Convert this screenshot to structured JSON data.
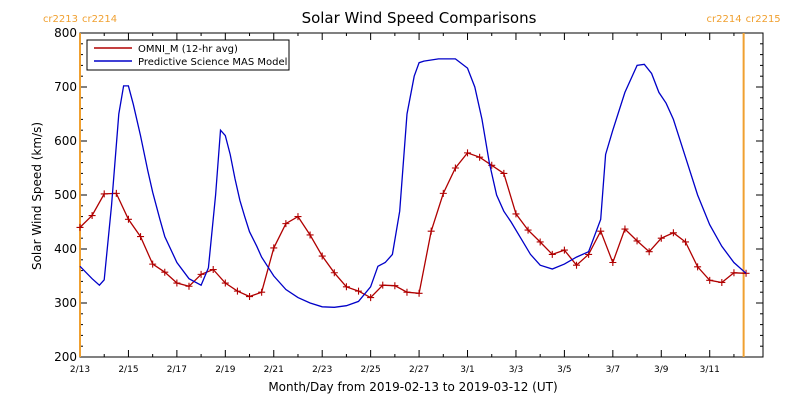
{
  "chart_data": {
    "type": "line",
    "title": "Solar Wind Speed Comparisons",
    "xlabel": "Month/Day from 2019-02-13 to 2019-03-12 (UT)",
    "ylabel": "Solar Wind Speed (km/s)",
    "xlim": [
      0,
      28.2
    ],
    "ylim": [
      200,
      800
    ],
    "x_ticks": [
      {
        "x": 0,
        "label": "2/13"
      },
      {
        "x": 2,
        "label": "2/15"
      },
      {
        "x": 4,
        "label": "2/17"
      },
      {
        "x": 6,
        "label": "2/19"
      },
      {
        "x": 8,
        "label": "2/21"
      },
      {
        "x": 10,
        "label": "2/23"
      },
      {
        "x": 12,
        "label": "2/25"
      },
      {
        "x": 14,
        "label": "2/27"
      },
      {
        "x": 16,
        "label": "3/1"
      },
      {
        "x": 18,
        "label": "3/3"
      },
      {
        "x": 20,
        "label": "3/5"
      },
      {
        "x": 22,
        "label": "3/7"
      },
      {
        "x": 24,
        "label": "3/9"
      },
      {
        "x": 26,
        "label": "3/11"
      }
    ],
    "y_ticks": [
      200,
      300,
      400,
      500,
      600,
      700,
      800
    ],
    "carrington_markers": [
      {
        "x": 0.0,
        "label_left": "cr2213",
        "label_right": "cr2214"
      },
      {
        "x": 27.4,
        "label_left": "cr2214",
        "label_right": "cr2215"
      }
    ],
    "marker_color": "#f0a030",
    "legend_position": "top-left",
    "series": [
      {
        "name": "OMNI_M (12-hr avg)",
        "color": "#b00000",
        "markers": "plus",
        "x": [
          0.0,
          0.5,
          1.0,
          1.5,
          2.0,
          2.5,
          3.0,
          3.5,
          4.0,
          4.5,
          5.0,
          5.5,
          6.0,
          6.5,
          7.0,
          7.5,
          8.0,
          8.5,
          9.0,
          9.5,
          10.0,
          10.5,
          11.0,
          11.5,
          12.0,
          12.5,
          13.0,
          13.5,
          14.0,
          14.5,
          15.0,
          15.5,
          16.0,
          16.5,
          17.0,
          17.5,
          18.0,
          18.5,
          19.0,
          19.5,
          20.0,
          20.5,
          21.0,
          21.5,
          22.0,
          22.5,
          23.0,
          23.5,
          24.0,
          24.5,
          25.0,
          25.5,
          26.0,
          26.5,
          27.0,
          27.5
        ],
        "y": [
          440,
          462,
          502,
          503,
          455,
          423,
          372,
          357,
          337,
          331,
          353,
          362,
          337,
          322,
          312,
          320,
          402,
          447,
          460,
          426,
          387,
          356,
          330,
          322,
          310,
          333,
          332,
          320,
          318,
          433,
          503,
          550,
          578,
          570,
          555,
          540,
          465,
          435,
          413,
          390,
          398,
          370,
          390,
          433,
          375,
          437,
          415,
          395,
          420,
          430,
          413,
          367,
          342,
          338,
          356,
          355
        ]
      },
      {
        "name": "Predictive Science MAS Model",
        "color": "#0000c8",
        "markers": "none",
        "x": [
          0.0,
          0.5,
          0.8,
          1.0,
          1.3,
          1.6,
          1.8,
          2.0,
          2.2,
          2.5,
          2.8,
          3.0,
          3.3,
          3.5,
          4.0,
          4.5,
          5.0,
          5.3,
          5.6,
          5.8,
          6.0,
          6.2,
          6.4,
          6.6,
          6.8,
          7.0,
          7.3,
          7.5,
          8.0,
          8.5,
          9.0,
          9.5,
          10.0,
          10.5,
          11.0,
          11.5,
          12.0,
          12.3,
          12.6,
          12.9,
          13.2,
          13.5,
          13.8,
          14.0,
          14.2,
          14.5,
          14.8,
          15.0,
          15.5,
          16.0,
          16.3,
          16.6,
          16.9,
          17.2,
          17.5,
          17.8,
          18.2,
          18.6,
          19.0,
          19.5,
          20.0,
          20.5,
          21.0,
          21.5,
          21.7,
          22.0,
          22.5,
          23.0,
          23.3,
          23.6,
          23.9,
          24.2,
          24.5,
          25.0,
          25.5,
          26.0,
          26.5,
          27.0,
          27.5
        ],
        "y": [
          368,
          345,
          333,
          343,
          480,
          650,
          702,
          702,
          668,
          610,
          545,
          505,
          455,
          423,
          375,
          345,
          333,
          365,
          500,
          620,
          610,
          575,
          530,
          490,
          460,
          432,
          405,
          385,
          350,
          325,
          310,
          300,
          293,
          292,
          295,
          303,
          330,
          368,
          375,
          390,
          470,
          650,
          720,
          745,
          748,
          750,
          752,
          752,
          752,
          735,
          700,
          640,
          560,
          500,
          470,
          450,
          420,
          390,
          370,
          363,
          372,
          385,
          395,
          455,
          575,
          620,
          690,
          740,
          742,
          725,
          690,
          670,
          640,
          570,
          500,
          445,
          405,
          375,
          355
        ]
      }
    ]
  }
}
